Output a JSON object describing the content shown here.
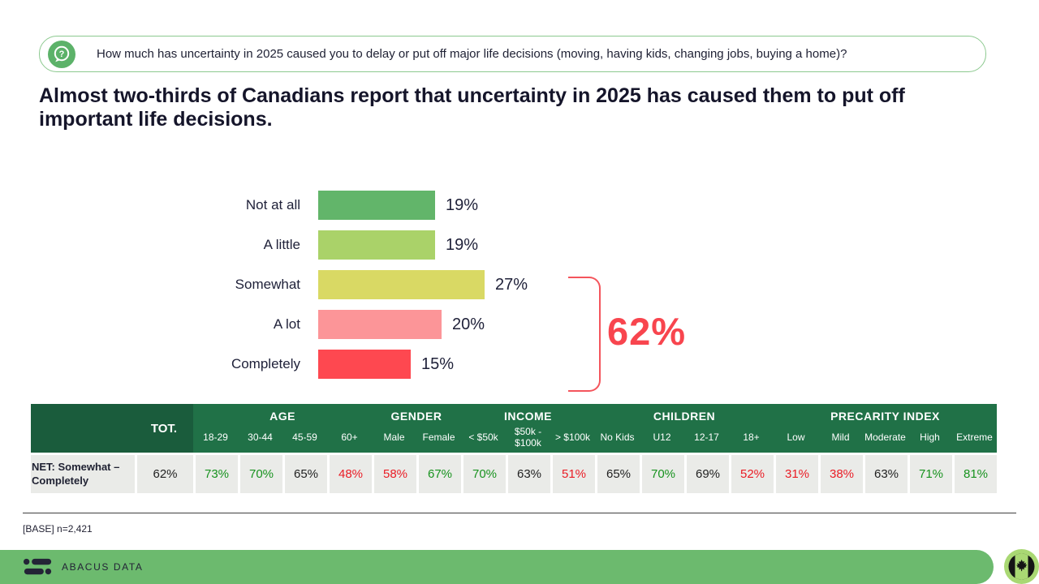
{
  "question": {
    "text": "How much has uncertainty in 2025 caused you to delay or put off major life decisions (moving, having kids, changing jobs, buying a home)?"
  },
  "headline": "Almost two-thirds of Canadians report that uncertainty in 2025 has caused them to put off important life decisions.",
  "chart_data": {
    "type": "bar",
    "orientation": "horizontal",
    "categories": [
      "Not at all",
      "A little",
      "Somewhat",
      "A lot",
      "Completely"
    ],
    "values": [
      19,
      19,
      27,
      20,
      15
    ],
    "labels": [
      "19%",
      "19%",
      "27%",
      "20%",
      "15%"
    ],
    "colors": [
      "#62b56a",
      "#aad269",
      "#d9d964",
      "#fc9598",
      "#fe4850"
    ],
    "xlim": [
      0,
      100
    ],
    "grid": false,
    "net_annotation": {
      "text": "62%",
      "value": 62,
      "spans": "Somewhat through Completely",
      "color": "#f8454e"
    }
  },
  "table": {
    "tot_header": "TOT.",
    "groups": [
      {
        "label": "AGE",
        "columns": [
          "18-29",
          "30-44",
          "45-59",
          "60+"
        ]
      },
      {
        "label": "GENDER",
        "columns": [
          "Male",
          "Female"
        ]
      },
      {
        "label": "INCOME",
        "columns": [
          "< $50k",
          "$50k - $100k",
          "> $100k"
        ]
      },
      {
        "label": "CHILDREN",
        "columns": [
          "No Kids",
          "U12",
          "12-17",
          "18+"
        ]
      },
      {
        "label": "PRECARITY INDEX",
        "columns": [
          "Low",
          "Mild",
          "Moderate",
          "High",
          "Extreme"
        ]
      }
    ],
    "row": {
      "label": "NET: Somewhat – Completely",
      "tot": {
        "text": "62%",
        "color": "black"
      },
      "cells": [
        {
          "column": "18-29",
          "text": "73%",
          "color": "green"
        },
        {
          "column": "30-44",
          "text": "70%",
          "color": "green"
        },
        {
          "column": "45-59",
          "text": "65%",
          "color": "black"
        },
        {
          "column": "60+",
          "text": "48%",
          "color": "red"
        },
        {
          "column": "Male",
          "text": "58%",
          "color": "red"
        },
        {
          "column": "Female",
          "text": "67%",
          "color": "green"
        },
        {
          "column": "< $50k",
          "text": "70%",
          "color": "green"
        },
        {
          "column": "$50k - $100k",
          "text": "63%",
          "color": "black"
        },
        {
          "column": "> $100k",
          "text": "51%",
          "color": "red"
        },
        {
          "column": "No Kids",
          "text": "65%",
          "color": "black"
        },
        {
          "column": "U12",
          "text": "70%",
          "color": "green"
        },
        {
          "column": "12-17",
          "text": "69%",
          "color": "black"
        },
        {
          "column": "18+",
          "text": "52%",
          "color": "red"
        },
        {
          "column": "Low",
          "text": "31%",
          "color": "red"
        },
        {
          "column": "Mild",
          "text": "38%",
          "color": "red"
        },
        {
          "column": "Moderate",
          "text": "63%",
          "color": "black"
        },
        {
          "column": "High",
          "text": "71%",
          "color": "green"
        },
        {
          "column": "Extreme",
          "text": "81%",
          "color": "green"
        }
      ]
    }
  },
  "base_note": "[BASE] n=2,421",
  "footer": {
    "brand": "ABACUS DATA"
  },
  "colors": {
    "header_green": "#207147",
    "header_corner_green": "#1a5c3c",
    "footer_green": "#6cba6e",
    "badge_green": "#a9d873",
    "question_border_green": "#8cc98f",
    "question_icon_green": "#5cb269",
    "significant_higher": "#17921e",
    "significant_lower": "#ea1c25",
    "net_red": "#f8454e"
  }
}
